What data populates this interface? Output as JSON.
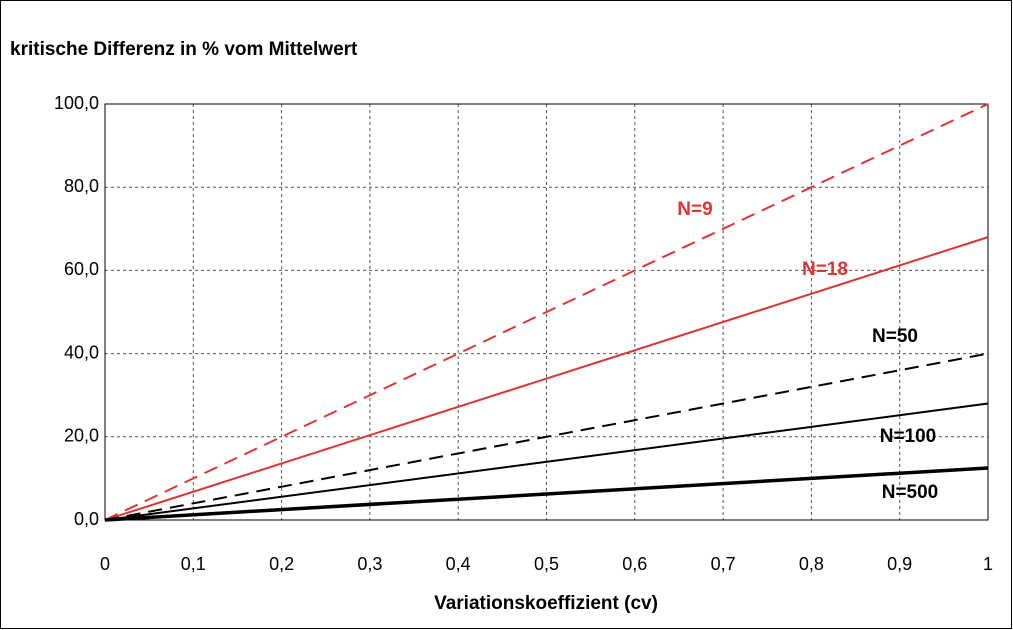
{
  "chart_data": {
    "type": "line",
    "title": "kritische Differenz in % vom Mittelwert",
    "x_label": "Variationskoeffizient (cv)",
    "x": [
      0,
      1
    ],
    "series": [
      {
        "name": "N=9",
        "color": "#e03434",
        "line_style": "dashed",
        "line_width": 2,
        "values": [
          0,
          100
        ]
      },
      {
        "name": "N=18",
        "color": "#e03434",
        "line_style": "solid",
        "line_width": 2,
        "values": [
          0,
          68
        ]
      },
      {
        "name": "N=50",
        "color": "#000000",
        "line_style": "dashed",
        "line_width": 2,
        "values": [
          0,
          40
        ]
      },
      {
        "name": "N=100",
        "color": "#000000",
        "line_style": "solid",
        "line_width": 2,
        "values": [
          0,
          28
        ]
      },
      {
        "name": "N=500",
        "color": "#000000",
        "line_style": "solid",
        "line_width": 3.5,
        "values": [
          0,
          12.5
        ]
      }
    ],
    "xlim": [
      0,
      1
    ],
    "xticks": [
      0,
      {
        "value": 0.1,
        "label": "0,1"
      },
      {
        "value": 0.2,
        "label": "0,2"
      },
      {
        "value": 0.3,
        "label": "0,3"
      },
      {
        "value": 0.4,
        "label": "0,4"
      },
      {
        "value": 0.5,
        "label": "0,5"
      },
      {
        "value": 0.6,
        "label": "0,6"
      },
      {
        "value": 0.7,
        "label": "0,7"
      },
      {
        "value": 0.8,
        "label": "0,8"
      },
      {
        "value": 0.9,
        "label": "0,9"
      },
      1
    ],
    "ylim": [
      0,
      100
    ],
    "yticks": [
      {
        "value": 0,
        "label": "0,0"
      },
      {
        "value": 20,
        "label": "20,0"
      },
      {
        "value": 40,
        "label": "40,0"
      },
      {
        "value": 60,
        "label": "60,0"
      },
      {
        "value": 80,
        "label": "80,0"
      },
      {
        "value": 100,
        "label": "100,0"
      }
    ],
    "grid": true
  }
}
